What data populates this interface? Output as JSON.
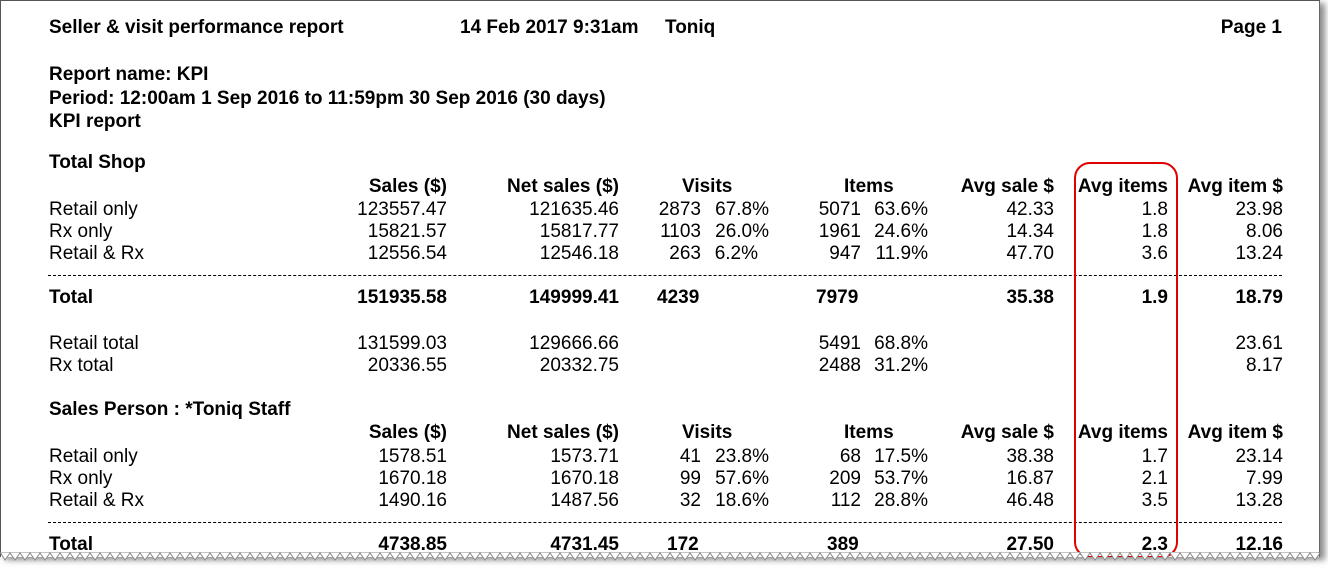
{
  "header": {
    "title": "Seller & visit performance report",
    "datetime": "14 Feb 2017 9:31am",
    "company": "Toniq",
    "page": "Page 1"
  },
  "report_info": {
    "name": "Report name: KPI",
    "period": "Period: 12:00am 1 Sep 2016 to 11:59pm 30 Sep 2016 (30 days)",
    "description": "KPI report"
  },
  "columns": [
    "Sales ($)",
    "Net sales ($)",
    "Visits",
    "Items",
    "Avg sale $",
    "Avg items",
    "Avg item $"
  ],
  "sections": [
    {
      "title": "Total Shop",
      "rows": [
        {
          "label": "Retail only",
          "sales": "123557.47",
          "net_sales": "121635.46",
          "visits": "2873",
          "visits_pct": "67.8%",
          "items": "5071",
          "items_pct": "63.6%",
          "avg_sale": "42.33",
          "avg_items": "1.8",
          "avg_item": "23.98"
        },
        {
          "label": "Rx only",
          "sales": "15821.57",
          "net_sales": "15817.77",
          "visits": "1103",
          "visits_pct": "26.0%",
          "items": "1961",
          "items_pct": "24.6%",
          "avg_sale": "14.34",
          "avg_items": "1.8",
          "avg_item": "8.06"
        },
        {
          "label": "Retail & Rx",
          "sales": "12556.54",
          "net_sales": "12546.18",
          "visits": "263",
          "visits_pct": "6.2%",
          "items": "947",
          "items_pct": "11.9%",
          "avg_sale": "47.70",
          "avg_items": "3.6",
          "avg_item": "13.24"
        }
      ],
      "total": {
        "label": "Total",
        "sales": "151935.58",
        "net_sales": "149999.41",
        "visits": "4239",
        "items": "7979",
        "avg_sale": "35.38",
        "avg_items": "1.9",
        "avg_item": "18.79"
      },
      "subtotals": [
        {
          "label": "Retail total",
          "sales": "131599.03",
          "net_sales": "129666.66",
          "items": "5491",
          "items_pct": "68.8%",
          "avg_item": "23.61"
        },
        {
          "label": "Rx total",
          "sales": "20336.55",
          "net_sales": "20332.75",
          "items": "2488",
          "items_pct": "31.2%",
          "avg_item": "8.17"
        }
      ]
    },
    {
      "title": "Sales Person : *Toniq Staff",
      "rows": [
        {
          "label": "Retail only",
          "sales": "1578.51",
          "net_sales": "1573.71",
          "visits": "41",
          "visits_pct": "23.8%",
          "items": "68",
          "items_pct": "17.5%",
          "avg_sale": "38.38",
          "avg_items": "1.7",
          "avg_item": "23.14"
        },
        {
          "label": "Rx only",
          "sales": "1670.18",
          "net_sales": "1670.18",
          "visits": "99",
          "visits_pct": "57.6%",
          "items": "209",
          "items_pct": "53.7%",
          "avg_sale": "16.87",
          "avg_items": "2.1",
          "avg_item": "7.99"
        },
        {
          "label": "Retail & Rx",
          "sales": "1490.16",
          "net_sales": "1487.56",
          "visits": "32",
          "visits_pct": "18.6%",
          "items": "112",
          "items_pct": "28.8%",
          "avg_sale": "46.48",
          "avg_items": "3.5",
          "avg_item": "13.28"
        }
      ],
      "total": {
        "label": "Total",
        "sales": "4738.85",
        "net_sales": "4731.45",
        "visits": "172",
        "items": "389",
        "avg_sale": "27.50",
        "avg_items": "2.3",
        "avg_item": "12.16"
      }
    }
  ],
  "highlight": {
    "column": "Avg items",
    "color": "#e00000"
  }
}
